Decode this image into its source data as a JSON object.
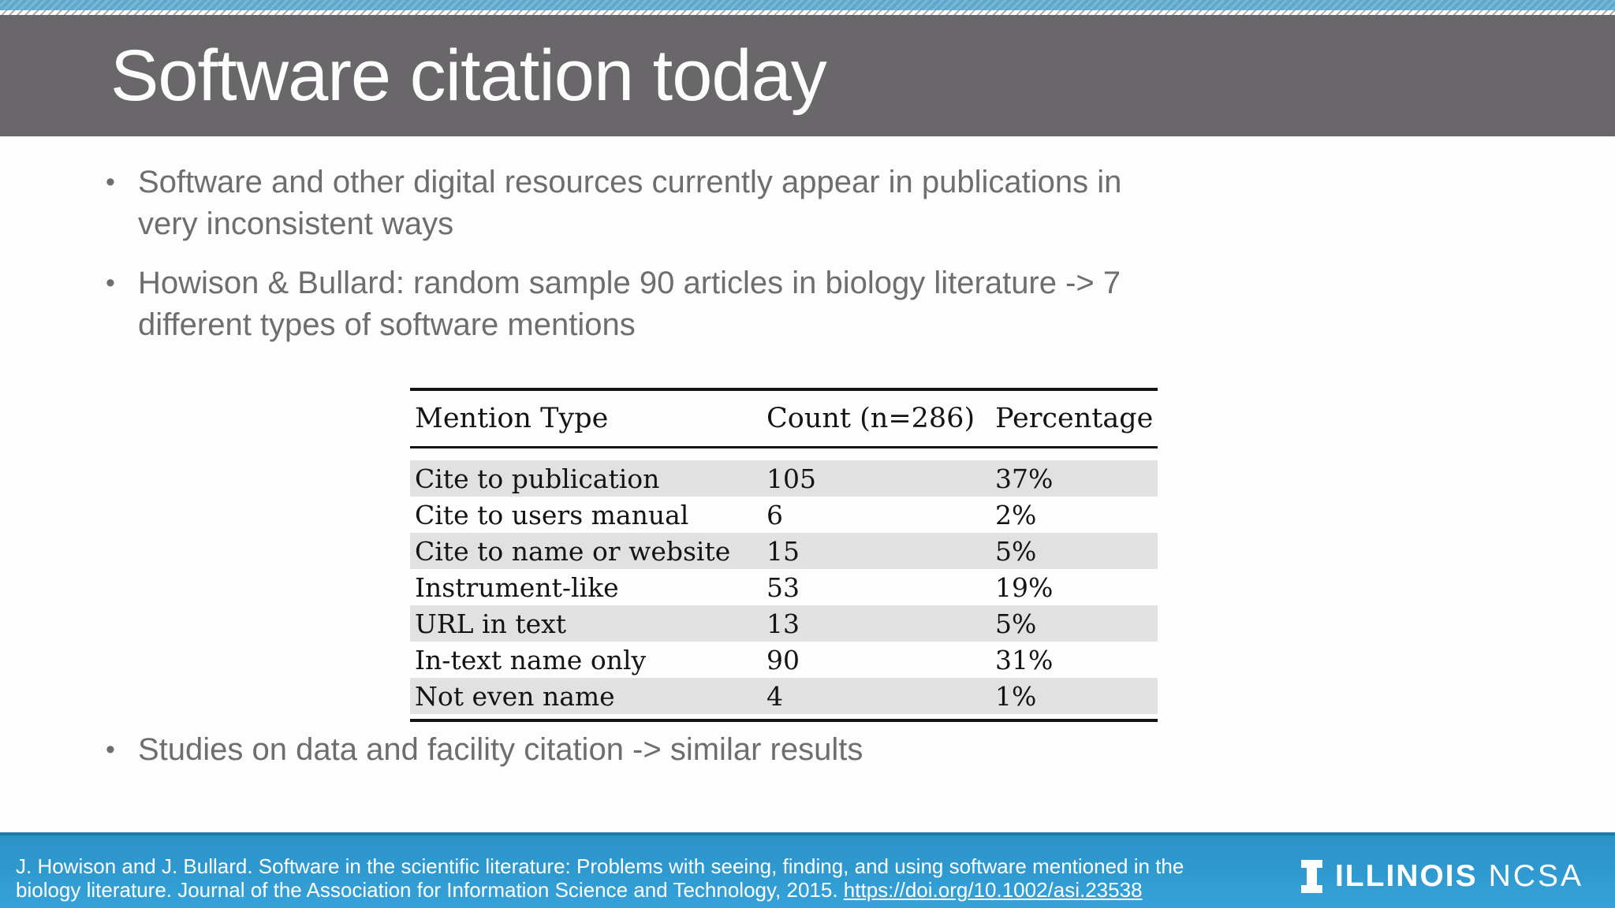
{
  "slide": {
    "title": "Software citation today",
    "bullet_char": "•",
    "bullets": [
      {
        "lines": [
          "Software and other digital resources currently appear in publications in",
          "very inconsistent ways"
        ]
      },
      {
        "lines": [
          "Howison & Bullard: random sample 90 articles in biology literature -> 7",
          "different types of software mentions"
        ]
      },
      {
        "lines": [
          "Studies on data and facility citation -> similar results"
        ]
      }
    ]
  },
  "table": {
    "columns": [
      "Mention Type",
      "Count (n=286)",
      "Percentage"
    ],
    "rows": [
      [
        "Cite to publication",
        "105",
        "37%"
      ],
      [
        "Cite to users manual",
        "6",
        "2%"
      ],
      [
        "Cite to name or website",
        "15",
        "5%"
      ],
      [
        "Instrument-like",
        "53",
        "19%"
      ],
      [
        "URL in text",
        "13",
        "5%"
      ],
      [
        "In-text name only",
        "90",
        "31%"
      ],
      [
        "Not even name",
        "4",
        "1%"
      ]
    ]
  },
  "footer": {
    "citation_line1": "J. Howison and J. Bullard. Software in the scientific literature: Problems with seeing, finding, and using software mentioned in the",
    "citation_line2_prefix": "biology literature. Journal of the Association for Information Science and Technology, 2015. ",
    "citation_link": "https://doi.org/10.1002/asi.23538",
    "brand_primary": "ILLINOIS",
    "brand_secondary": "NCSA"
  },
  "colors": {
    "header_gray": "#6a676a",
    "top_band_blue": "#5ea7cd",
    "footer_blue": "#2f9ed6",
    "bullet_text": "#6e6e6e",
    "row_shade": "#e1e1e1"
  }
}
